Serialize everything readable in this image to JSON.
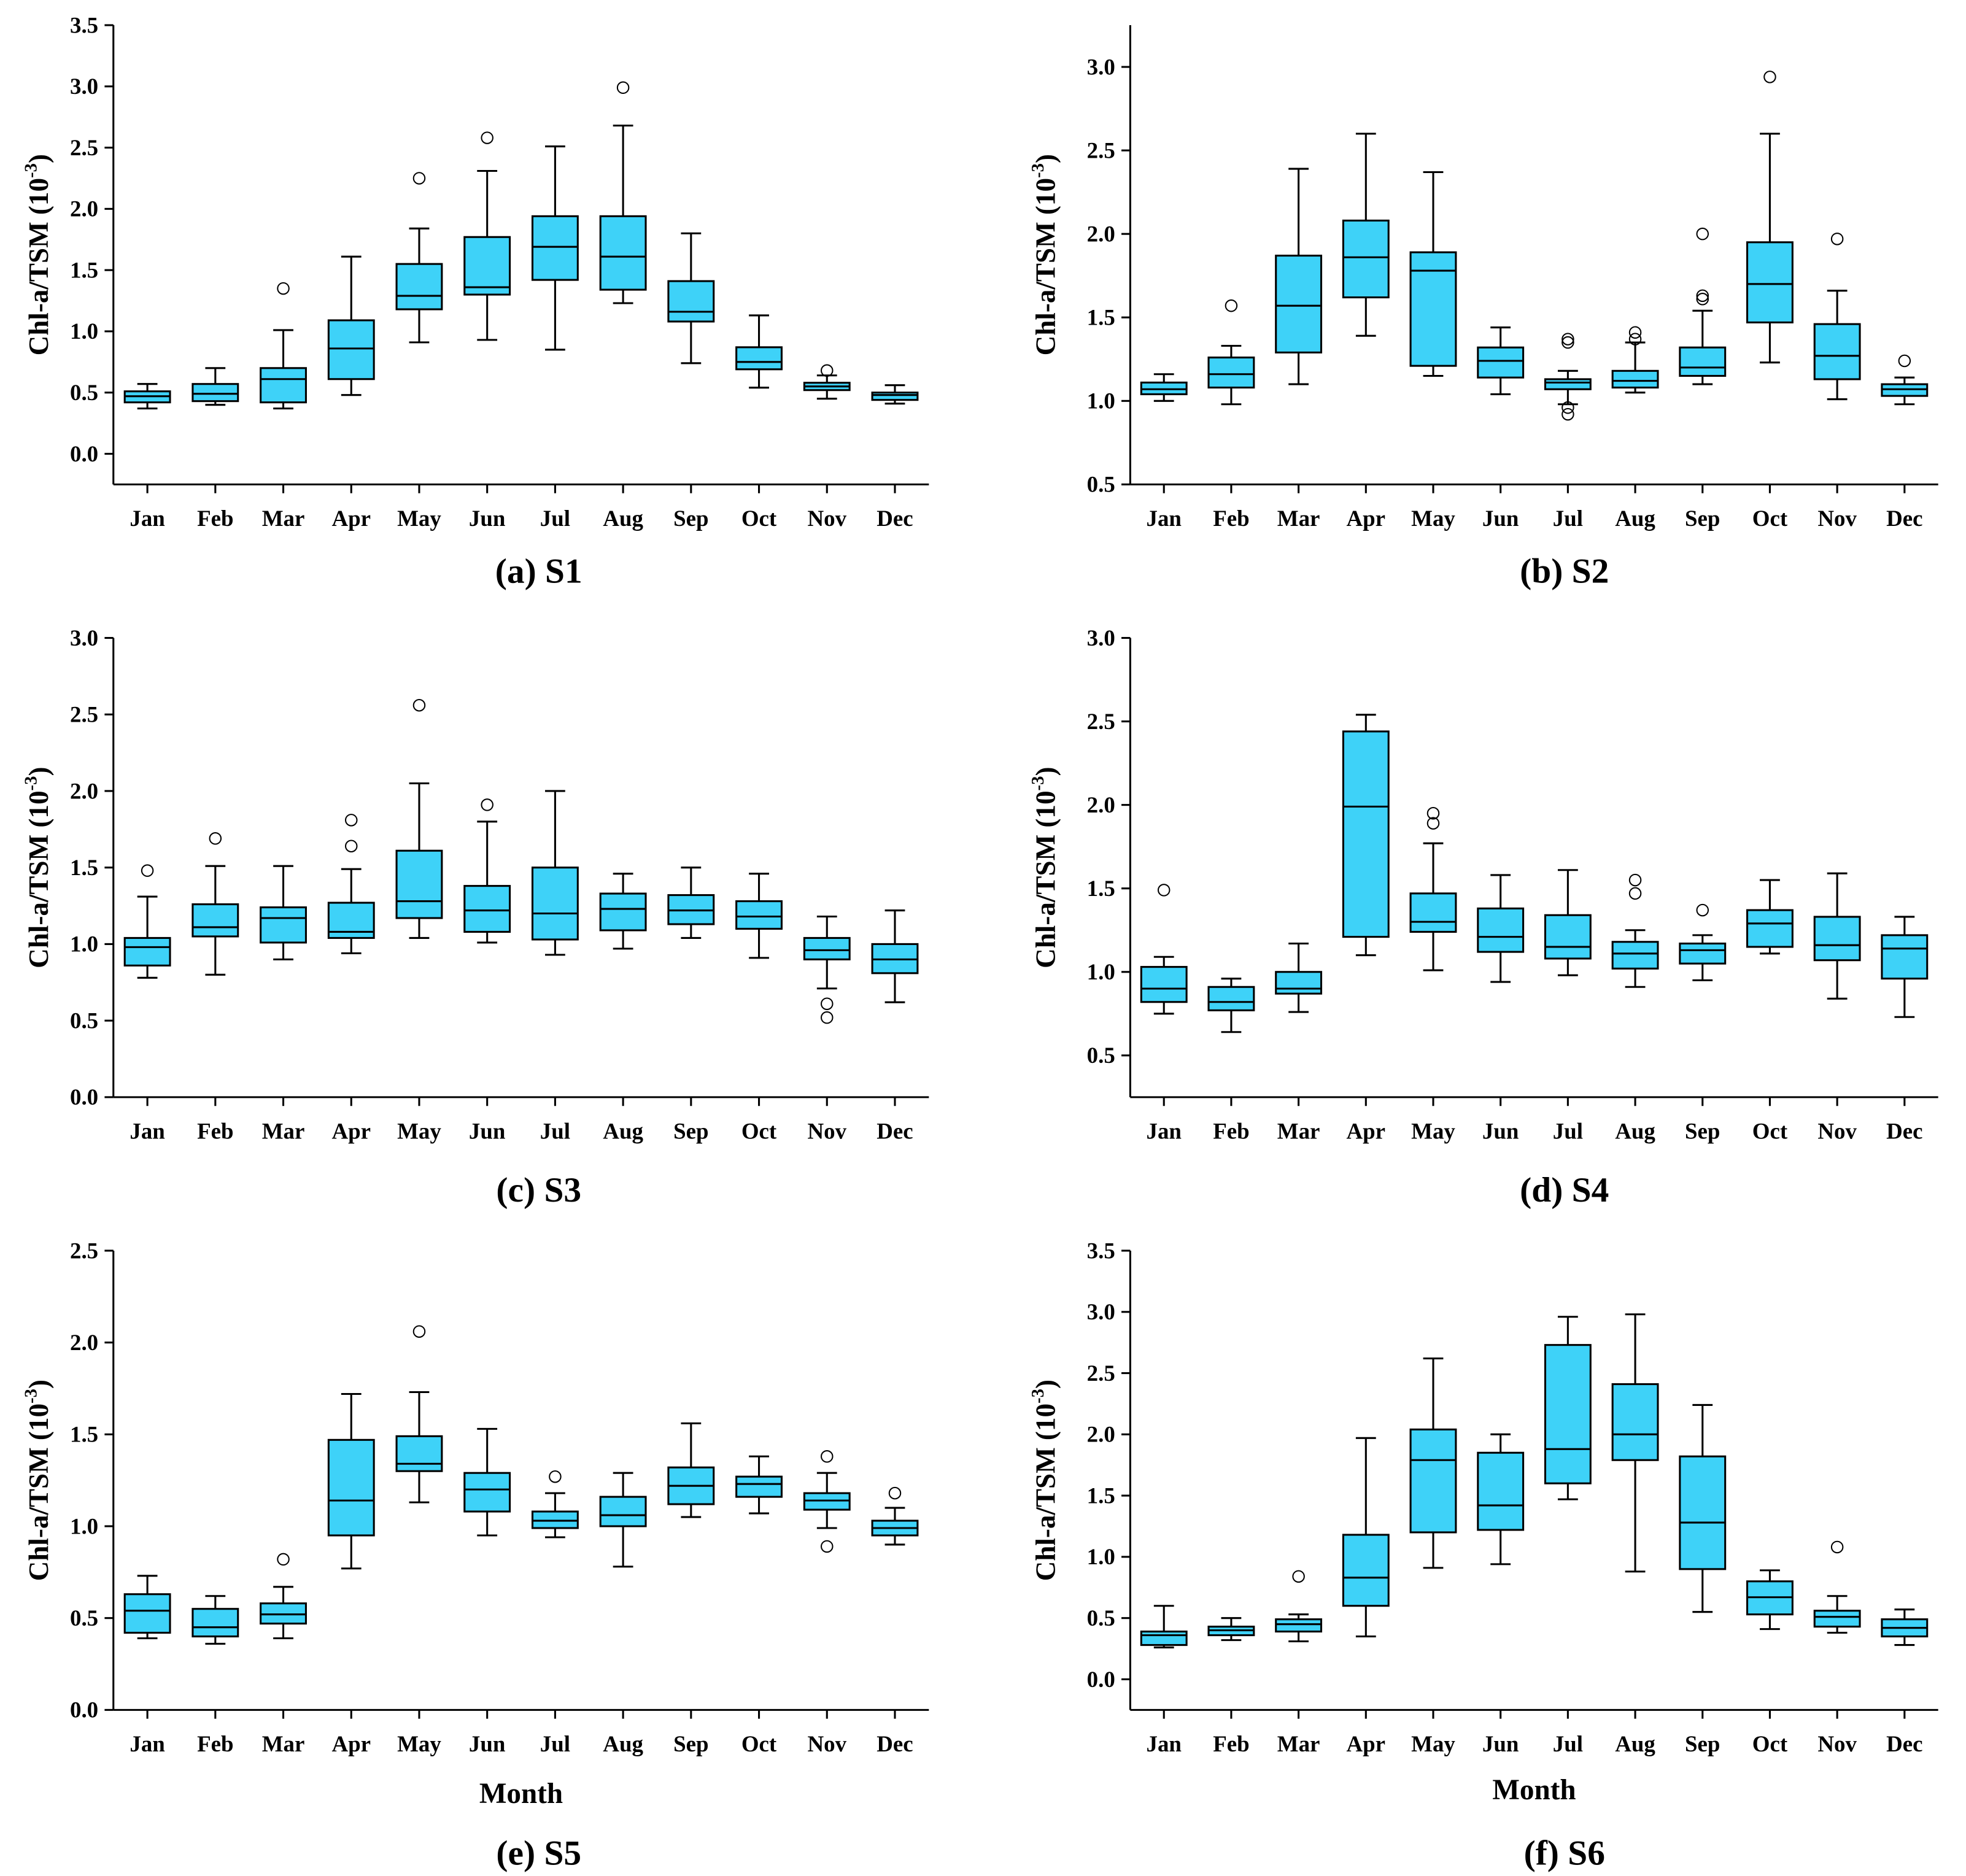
{
  "chart_data": [
    {
      "type": "box",
      "title": "(a) S1",
      "y_label": [
        "Chl-a/TSM  (10",
        "-3",
        ")"
      ],
      "color": "#3ed2f8",
      "categories": [
        "Jan",
        "Feb",
        "Mar",
        "Apr",
        "May",
        "Jun",
        "Jul",
        "Aug",
        "Sep",
        "Oct",
        "Nov",
        "Dec"
      ],
      "ylim": [
        -0.25,
        3.5
      ],
      "yticks": [
        {
          "value": 0,
          "label": "0.0"
        },
        0.5,
        {
          "value": 1,
          "label": "1.0"
        },
        1.5,
        {
          "value": 2,
          "label": "2.0"
        },
        2.5,
        {
          "value": 3,
          "label": "3.0"
        },
        3.5
      ],
      "whislo": [
        0.37,
        0.4,
        0.37,
        0.48,
        0.91,
        0.93,
        0.85,
        1.23,
        0.74,
        0.54,
        0.45,
        0.41
      ],
      "q1": [
        0.42,
        0.43,
        0.42,
        0.61,
        1.18,
        1.3,
        1.42,
        1.34,
        1.08,
        0.69,
        0.52,
        0.44
      ],
      "med": [
        0.47,
        0.49,
        0.61,
        0.86,
        1.29,
        1.36,
        1.69,
        1.61,
        1.16,
        0.75,
        0.55,
        0.48
      ],
      "q3": [
        0.51,
        0.57,
        0.7,
        1.09,
        1.55,
        1.77,
        1.94,
        1.94,
        1.41,
        0.87,
        0.58,
        0.5
      ],
      "whishi": [
        0.57,
        0.7,
        1.01,
        1.61,
        1.84,
        2.31,
        2.51,
        2.68,
        1.8,
        1.13,
        0.64,
        0.56
      ],
      "outliers": [
        [],
        [],
        [
          1.35
        ],
        [],
        [
          2.25
        ],
        [
          2.58
        ],
        [],
        [
          2.99
        ],
        [],
        [],
        [
          0.68
        ],
        []
      ]
    },
    {
      "type": "box",
      "title": "(b) S2",
      "y_label": [
        "Chl-a/TSM  (10",
        "-3",
        ")"
      ],
      "color": "#3ed2f8",
      "categories": [
        "Jan",
        "Feb",
        "Mar",
        "Apr",
        "May",
        "Jun",
        "Jul",
        "Aug",
        "Sep",
        "Oct",
        "Nov",
        "Dec"
      ],
      "ylim": [
        0.5,
        3.25
      ],
      "yticks": [
        0.5,
        {
          "value": 1,
          "label": "1.0"
        },
        1.5,
        {
          "value": 2,
          "label": "2.0"
        },
        2.5,
        {
          "value": 3,
          "label": "3.0"
        }
      ],
      "whislo": [
        1.0,
        0.98,
        1.1,
        1.39,
        1.15,
        1.04,
        0.98,
        1.05,
        1.1,
        1.23,
        1.01,
        0.98
      ],
      "q1": [
        1.04,
        1.08,
        1.29,
        1.62,
        1.21,
        1.14,
        1.07,
        1.08,
        1.15,
        1.47,
        1.13,
        1.03
      ],
      "med": [
        1.07,
        1.16,
        1.57,
        1.86,
        1.78,
        1.24,
        1.11,
        1.12,
        1.2,
        1.7,
        1.27,
        1.07
      ],
      "q3": [
        1.11,
        1.26,
        1.87,
        2.08,
        1.89,
        1.32,
        1.13,
        1.18,
        1.32,
        1.95,
        1.46,
        1.1
      ],
      "whishi": [
        1.16,
        1.33,
        2.39,
        2.6,
        2.37,
        1.44,
        1.18,
        1.35,
        1.54,
        2.6,
        1.66,
        1.14
      ],
      "outliers": [
        [],
        [
          1.57
        ],
        [],
        [],
        [],
        [],
        [
          1.37,
          1.35,
          0.96,
          0.92
        ],
        [
          1.41,
          1.37
        ],
        [
          2.0,
          1.63,
          1.61
        ],
        [
          2.94
        ],
        [
          1.97
        ],
        [
          1.24
        ]
      ]
    },
    {
      "type": "box",
      "title": "(c) S3",
      "y_label": [
        "Chl-a/TSM  (10",
        "-3",
        ")"
      ],
      "color": "#3ed2f8",
      "categories": [
        "Jan",
        "Feb",
        "Mar",
        "Apr",
        "May",
        "Jun",
        "Jul",
        "Aug",
        "Sep",
        "Oct",
        "Nov",
        "Dec"
      ],
      "ylim": [
        0,
        3
      ],
      "yticks": [
        {
          "value": 0,
          "label": "0.0"
        },
        0.5,
        {
          "value": 1,
          "label": "1.0"
        },
        1.5,
        {
          "value": 2,
          "label": "2.0"
        },
        2.5,
        {
          "value": 3,
          "label": "3.0"
        }
      ],
      "whislo": [
        0.78,
        0.8,
        0.9,
        0.94,
        1.04,
        1.01,
        0.93,
        0.97,
        1.04,
        0.91,
        0.71,
        0.62
      ],
      "q1": [
        0.86,
        1.05,
        1.01,
        1.04,
        1.17,
        1.08,
        1.03,
        1.09,
        1.13,
        1.1,
        0.9,
        0.81
      ],
      "med": [
        0.98,
        1.11,
        1.17,
        1.08,
        1.28,
        1.22,
        1.2,
        1.23,
        1.22,
        1.18,
        0.96,
        0.9
      ],
      "q3": [
        1.04,
        1.26,
        1.24,
        1.27,
        1.61,
        1.38,
        1.5,
        1.33,
        1.32,
        1.28,
        1.04,
        1.0
      ],
      "whishi": [
        1.31,
        1.51,
        1.51,
        1.49,
        2.05,
        1.8,
        2.0,
        1.46,
        1.5,
        1.46,
        1.18,
        1.22
      ],
      "outliers": [
        [
          1.48
        ],
        [
          1.69
        ],
        [],
        [
          1.64,
          1.81
        ],
        [
          2.56
        ],
        [
          1.91
        ],
        [],
        [],
        [],
        [],
        [
          0.61,
          0.52
        ],
        []
      ]
    },
    {
      "type": "box",
      "title": "(d) S4",
      "y_label": [
        "Chl-a/TSM  (10",
        "-3",
        ")"
      ],
      "color": "#3ed2f8",
      "categories": [
        "Jan",
        "Feb",
        "Mar",
        "Apr",
        "May",
        "Jun",
        "Jul",
        "Aug",
        "Sep",
        "Oct",
        "Nov",
        "Dec"
      ],
      "ylim": [
        0.25,
        3
      ],
      "yticks": [
        0.5,
        {
          "value": 1,
          "label": "1.0"
        },
        1.5,
        {
          "value": 2,
          "label": "2.0"
        },
        2.5,
        {
          "value": 3,
          "label": "3.0"
        }
      ],
      "whislo": [
        0.75,
        0.64,
        0.76,
        1.1,
        1.01,
        0.94,
        0.98,
        0.91,
        0.95,
        1.11,
        0.84,
        0.73
      ],
      "q1": [
        0.82,
        0.77,
        0.87,
        1.21,
        1.24,
        1.12,
        1.08,
        1.02,
        1.05,
        1.15,
        1.07,
        0.96
      ],
      "med": [
        0.9,
        0.82,
        0.9,
        1.99,
        1.3,
        1.21,
        1.15,
        1.11,
        1.13,
        1.29,
        1.16,
        1.14
      ],
      "q3": [
        1.03,
        0.91,
        1.0,
        2.44,
        1.47,
        1.38,
        1.34,
        1.18,
        1.17,
        1.37,
        1.33,
        1.22
      ],
      "whishi": [
        1.09,
        0.96,
        1.17,
        2.54,
        1.77,
        1.58,
        1.61,
        1.25,
        1.22,
        1.55,
        1.59,
        1.33
      ],
      "outliers": [
        [
          1.49
        ],
        [],
        [],
        [],
        [
          1.89,
          1.95
        ],
        [],
        [],
        [
          1.47,
          1.55
        ],
        [
          1.37
        ],
        [],
        [],
        []
      ]
    },
    {
      "type": "box",
      "title": "(e) S5",
      "y_label": [
        "Chl-a/TSM  (10",
        "-3",
        ")"
      ],
      "x_label": "Month",
      "color": "#3ed2f8",
      "categories": [
        "Jan",
        "Feb",
        "Mar",
        "Apr",
        "May",
        "Jun",
        "Jul",
        "Aug",
        "Sep",
        "Oct",
        "Nov",
        "Dec"
      ],
      "ylim": [
        0,
        2.5
      ],
      "yticks": [
        {
          "value": 0,
          "label": "0.0"
        },
        0.5,
        {
          "value": 1,
          "label": "1.0"
        },
        1.5,
        {
          "value": 2,
          "label": "2.0"
        },
        2.5
      ],
      "whislo": [
        0.39,
        0.36,
        0.39,
        0.77,
        1.13,
        0.95,
        0.94,
        0.78,
        1.05,
        1.07,
        0.99,
        0.9
      ],
      "q1": [
        0.42,
        0.4,
        0.47,
        0.95,
        1.3,
        1.08,
        0.99,
        1.0,
        1.12,
        1.16,
        1.09,
        0.95
      ],
      "med": [
        0.54,
        0.45,
        0.52,
        1.14,
        1.34,
        1.2,
        1.03,
        1.06,
        1.22,
        1.23,
        1.14,
        0.99
      ],
      "q3": [
        0.63,
        0.55,
        0.58,
        1.47,
        1.49,
        1.29,
        1.08,
        1.16,
        1.32,
        1.27,
        1.18,
        1.03
      ],
      "whishi": [
        0.73,
        0.62,
        0.67,
        1.72,
        1.73,
        1.53,
        1.18,
        1.29,
        1.56,
        1.38,
        1.29,
        1.1
      ],
      "outliers": [
        [],
        [],
        [
          0.82
        ],
        [],
        [
          2.06
        ],
        [],
        [
          1.27
        ],
        [],
        [],
        [],
        [
          1.38,
          0.89
        ],
        [
          1.18
        ]
      ]
    },
    {
      "type": "box",
      "title": "(f) S6",
      "y_label": [
        "Chl-a/TSM  (10",
        "-3",
        ")"
      ],
      "x_label": "Month",
      "color": "#3ed2f8",
      "categories": [
        "Jan",
        "Feb",
        "Mar",
        "Apr",
        "May",
        "Jun",
        "Jul",
        "Aug",
        "Sep",
        "Oct",
        "Nov",
        "Dec"
      ],
      "ylim": [
        -0.25,
        3.5
      ],
      "yticks": [
        {
          "value": 0,
          "label": "0.0"
        },
        0.5,
        {
          "value": 1,
          "label": "1.0"
        },
        1.5,
        {
          "value": 2,
          "label": "2.0"
        },
        2.5,
        {
          "value": 3,
          "label": "3.0"
        },
        3.5
      ],
      "whislo": [
        0.26,
        0.32,
        0.31,
        0.35,
        0.91,
        0.94,
        1.47,
        0.88,
        0.55,
        0.41,
        0.38,
        0.28
      ],
      "q1": [
        0.28,
        0.36,
        0.39,
        0.6,
        1.2,
        1.22,
        1.6,
        1.79,
        0.9,
        0.53,
        0.43,
        0.35
      ],
      "med": [
        0.36,
        0.4,
        0.45,
        0.83,
        1.79,
        1.42,
        1.88,
        2.0,
        1.28,
        0.67,
        0.51,
        0.42
      ],
      "q3": [
        0.39,
        0.43,
        0.49,
        1.18,
        2.04,
        1.85,
        2.73,
        2.41,
        1.82,
        0.8,
        0.56,
        0.49
      ],
      "whishi": [
        0.6,
        0.5,
        0.53,
        1.97,
        2.62,
        2.0,
        2.96,
        2.98,
        2.24,
        0.89,
        0.68,
        0.57
      ],
      "outliers": [
        [],
        [],
        [
          0.84
        ],
        [],
        [],
        [],
        [],
        [],
        [],
        [],
        [
          1.08
        ],
        []
      ]
    }
  ]
}
